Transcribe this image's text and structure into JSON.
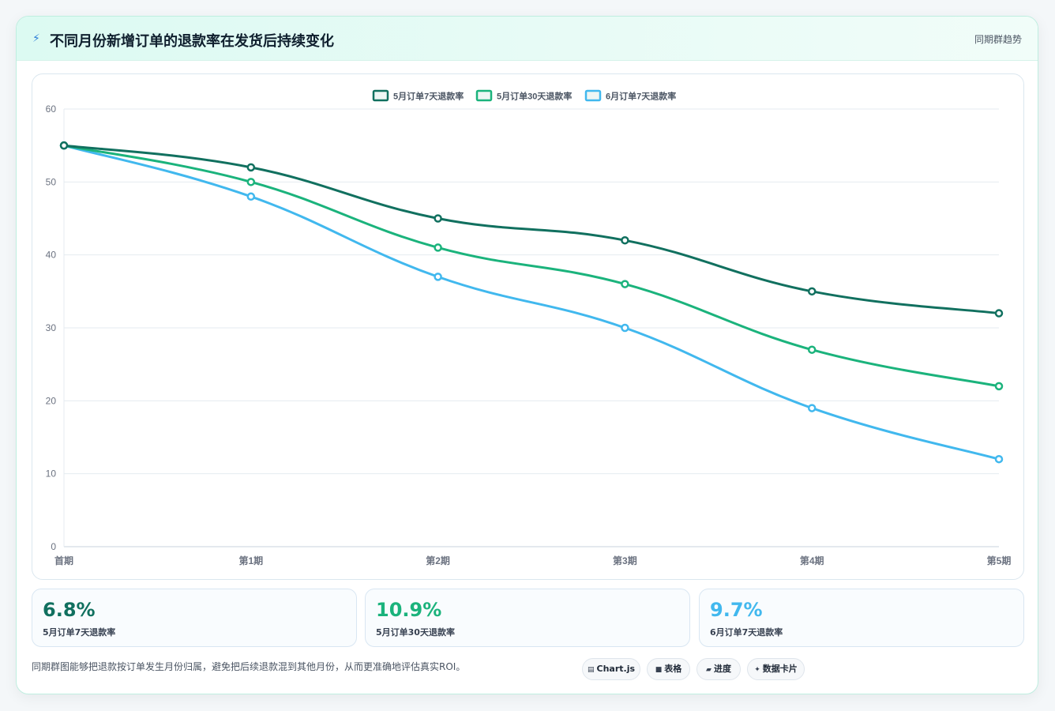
{
  "header": {
    "title": "不同月份新增订单的退款率在发货后持续变化",
    "tag": "同期群趋势",
    "icon": "lightning-icon"
  },
  "chart_data": {
    "type": "line",
    "categories": [
      "首期",
      "第1期",
      "第2期",
      "第3期",
      "第4期",
      "第5期"
    ],
    "ylim": [
      0,
      60
    ],
    "yticks": [
      0,
      10,
      20,
      30,
      40,
      50,
      60
    ],
    "grid": true,
    "legend_position": "top-center",
    "series": [
      {
        "name": "5月订单7天退款率",
        "color": "#11705f",
        "values": [
          55,
          52,
          45,
          42,
          35,
          32
        ]
      },
      {
        "name": "5月订单30天退款率",
        "color": "#1bb37c",
        "values": [
          55,
          50,
          41,
          36,
          27,
          22
        ]
      },
      {
        "name": "6月订单7天退款率",
        "color": "#41b8ee",
        "values": [
          55,
          48,
          37,
          30,
          19,
          12
        ]
      }
    ]
  },
  "stats": [
    {
      "value": "6.8%",
      "label": "5月订单7天退款率",
      "color": "#11705f"
    },
    {
      "value": "10.9%",
      "label": "5月订单30天退款率",
      "color": "#1bb37c"
    },
    {
      "value": "9.7%",
      "label": "6月订单7天退款率",
      "color": "#41b8ee"
    }
  ],
  "footnote": "同期群图能够把退款按订单发生月份归属，避免把后续退款混到其他月份，从而更准确地评估真实ROI。",
  "badges": [
    {
      "label": "Chart.js",
      "icon": "chart-icon"
    },
    {
      "label": "表格",
      "icon": "table-icon"
    },
    {
      "label": "进度",
      "icon": "progress-icon"
    },
    {
      "label": "数据卡片",
      "icon": "sparkle-icon"
    }
  ]
}
